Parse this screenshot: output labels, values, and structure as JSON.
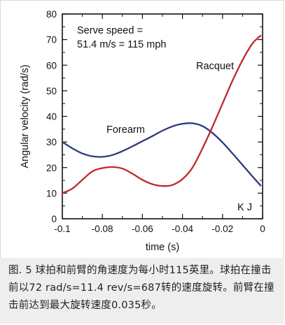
{
  "chart_data": {
    "type": "line",
    "xlabel": "time  (s)",
    "ylabel": "Angular velocity  (rad/s)",
    "xlim": [
      -0.1,
      0
    ],
    "ylim": [
      0,
      80
    ],
    "xticks": [
      -0.1,
      -0.08,
      -0.06,
      -0.04,
      -0.02,
      0
    ],
    "xtick_labels": [
      "-0.1",
      "-0.08",
      "-0.06",
      "-0.04",
      "-0.02",
      "0"
    ],
    "yticks": [
      0,
      10,
      20,
      30,
      40,
      50,
      60,
      70,
      80
    ],
    "ytick_labels": [
      "0",
      "10",
      "20",
      "30",
      "40",
      "50",
      "60",
      "70",
      "80"
    ],
    "grid": false,
    "annotation_lines": [
      "Serve speed =",
      "51.4  m/s  =  115  mph"
    ],
    "series": [
      {
        "name": "Forearm",
        "color": "#2b3a7a",
        "x": [
          -0.1,
          -0.095,
          -0.09,
          -0.085,
          -0.08,
          -0.075,
          -0.07,
          -0.065,
          -0.06,
          -0.055,
          -0.05,
          -0.045,
          -0.04,
          -0.035,
          -0.03,
          -0.025,
          -0.02,
          -0.015,
          -0.01,
          -0.005,
          -0.001
        ],
        "y": [
          30,
          27.5,
          25.5,
          24.4,
          24.2,
          24.9,
          26.4,
          28.3,
          30.3,
          32.3,
          34.4,
          36.1,
          37.1,
          37.3,
          36.2,
          33.5,
          29.8,
          25.5,
          21,
          16.5,
          13
        ]
      },
      {
        "name": "Racquet",
        "color": "#c0272d",
        "x": [
          -0.1,
          -0.095,
          -0.09,
          -0.085,
          -0.08,
          -0.075,
          -0.07,
          -0.065,
          -0.06,
          -0.055,
          -0.05,
          -0.045,
          -0.04,
          -0.035,
          -0.03,
          -0.025,
          -0.02,
          -0.015,
          -0.01,
          -0.005,
          -0.001
        ],
        "y": [
          10,
          11.8,
          15.2,
          18.5,
          19.8,
          20.2,
          19.6,
          17.6,
          15.2,
          13.5,
          12.8,
          13.2,
          15.5,
          20,
          27.5,
          36,
          45,
          54,
          62,
          68.5,
          71.5
        ]
      }
    ],
    "series_labels": [
      {
        "text": "Forearm",
        "series": 0
      },
      {
        "text": "Racquet",
        "series": 1
      },
      {
        "text": "K J",
        "series": -1
      }
    ]
  },
  "caption": {
    "text": "图. 5 球拍和前臂的角速度为每小时115英里。球拍在撞击前以72 rad/s=11.4 rev/s=687转的速度旋转。前臂在撞击前达到最大旋转速度0.035秒。"
  }
}
